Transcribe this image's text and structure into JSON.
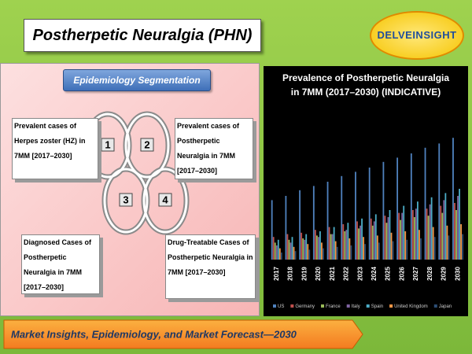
{
  "header": {
    "title": "Postherpetic Neuralgia (PHN)",
    "logo": "DELVEINSIGHT"
  },
  "segmentation": {
    "title": "Epidemiology Segmentation",
    "items": [
      {
        "number": "1",
        "text": "Prevalent cases of Herpes zoster (HZ) in 7MM [2017–2030]"
      },
      {
        "number": "2",
        "text": "Prevalent cases of Postherpetic Neuralgia in 7MM [2017–2030]"
      },
      {
        "number": "3",
        "text": "Diagnosed Cases of Postherpetic Neuralgia in 7MM [2017–2030]"
      },
      {
        "number": "4",
        "text": "Drug-Treatable Cases of Postherpetic Neuralgia in 7MM [2017–2030]"
      }
    ]
  },
  "chart_data": {
    "type": "bar",
    "title": "Prevalence of Postherpetic Neuralgia in 7MM (2017–2030) (INDICATIVE)",
    "categories": [
      "2017",
      "2018",
      "2019",
      "2020",
      "2021",
      "2022",
      "2023",
      "2024",
      "2025",
      "2026",
      "2027",
      "2028",
      "2029",
      "2030"
    ],
    "ylim": [
      0,
      100
    ],
    "series": [
      {
        "name": "US",
        "color": "#4f81bd",
        "values": [
          42,
          45,
          49,
          52,
          55,
          59,
          62,
          65,
          69,
          72,
          75,
          79,
          82,
          86
        ]
      },
      {
        "name": "Germany",
        "color": "#c0504d",
        "values": [
          16,
          18,
          19,
          21,
          23,
          25,
          27,
          29,
          31,
          33,
          35,
          36,
          38,
          40
        ]
      },
      {
        "name": "France",
        "color": "#9bbb59",
        "values": [
          12,
          14,
          15,
          17,
          18,
          20,
          22,
          24,
          26,
          28,
          30,
          31,
          33,
          35
        ]
      },
      {
        "name": "Italy",
        "color": "#8064a2",
        "values": [
          10,
          12,
          14,
          16,
          18,
          21,
          24,
          27,
          30,
          33,
          36,
          39,
          42,
          45
        ]
      },
      {
        "name": "Spain",
        "color": "#4bacc6",
        "values": [
          14,
          16,
          18,
          20,
          23,
          26,
          29,
          32,
          35,
          38,
          41,
          44,
          47,
          50
        ]
      },
      {
        "name": "United Kingdom",
        "color": "#f79646",
        "values": [
          8,
          9,
          11,
          12,
          13,
          15,
          16,
          17,
          19,
          20,
          21,
          23,
          24,
          25
        ]
      },
      {
        "name": "Japan",
        "color": "#2c4d75",
        "values": [
          5,
          6,
          7,
          8,
          9,
          10,
          11,
          12,
          13,
          14,
          15,
          16,
          17,
          18
        ]
      }
    ]
  },
  "footer": {
    "text": "Market Insights, Epidemiology, and Market Forecast—2030"
  }
}
